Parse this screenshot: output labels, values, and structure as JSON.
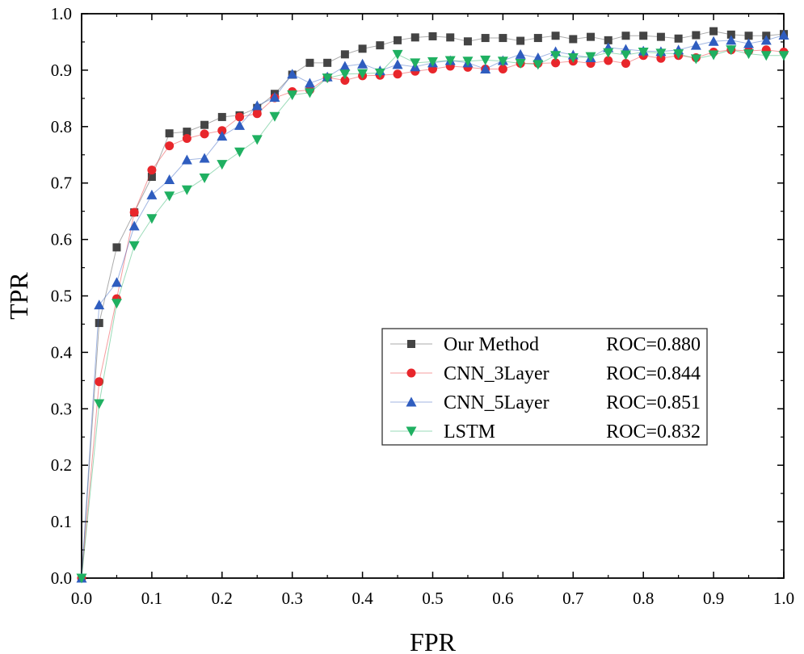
{
  "chart_data": {
    "type": "line",
    "title": "",
    "xlabel": "FPR",
    "ylabel": "TPR",
    "xlim": [
      0.0,
      1.0
    ],
    "ylim": [
      0.0,
      1.0
    ],
    "grid": false,
    "legend_position": "center-right",
    "x_ticks": [
      "0.0",
      "0.1",
      "0.2",
      "0.3",
      "0.4",
      "0.5",
      "0.6",
      "0.7",
      "0.8",
      "0.9",
      "1.0"
    ],
    "y_ticks": [
      "0.0",
      "0.1",
      "0.2",
      "0.3",
      "0.4",
      "0.5",
      "0.6",
      "0.7",
      "0.8",
      "0.9",
      "1.0"
    ],
    "x": [
      0.0,
      0.025,
      0.05,
      0.075,
      0.1,
      0.125,
      0.15,
      0.175,
      0.2,
      0.225,
      0.25,
      0.275,
      0.3,
      0.325,
      0.35,
      0.375,
      0.4,
      0.425,
      0.45,
      0.475,
      0.5,
      0.525,
      0.55,
      0.575,
      0.6,
      0.625,
      0.65,
      0.675,
      0.7,
      0.725,
      0.75,
      0.775,
      0.8,
      0.825,
      0.85,
      0.875,
      0.9,
      0.925,
      0.95,
      0.975,
      1.0
    ],
    "series": [
      {
        "name": "Our Method",
        "roc": "ROC=0.880",
        "color": "#444444",
        "marker": "square",
        "values": [
          0.0,
          0.452,
          0.586,
          0.648,
          0.711,
          0.788,
          0.791,
          0.803,
          0.817,
          0.82,
          0.833,
          0.858,
          0.892,
          0.913,
          0.913,
          0.928,
          0.938,
          0.944,
          0.953,
          0.958,
          0.96,
          0.958,
          0.951,
          0.957,
          0.957,
          0.952,
          0.957,
          0.961,
          0.955,
          0.959,
          0.953,
          0.961,
          0.961,
          0.959,
          0.956,
          0.962,
          0.969,
          0.963,
          0.961,
          0.961,
          0.964
        ]
      },
      {
        "name": "CNN_3Layer",
        "roc": "ROC=0.844",
        "color": "#e8262b",
        "marker": "circle",
        "values": [
          0.0,
          0.348,
          0.495,
          0.648,
          0.723,
          0.766,
          0.779,
          0.787,
          0.793,
          0.817,
          0.823,
          0.851,
          0.862,
          0.865,
          0.887,
          0.882,
          0.89,
          0.891,
          0.893,
          0.898,
          0.902,
          0.907,
          0.905,
          0.902,
          0.902,
          0.912,
          0.912,
          0.913,
          0.916,
          0.912,
          0.917,
          0.912,
          0.926,
          0.921,
          0.926,
          0.922,
          0.932,
          0.936,
          0.934,
          0.936,
          0.932
        ]
      },
      {
        "name": "CNN_5Layer",
        "roc": "ROC=0.851",
        "color": "#2f5dbf",
        "marker": "triangle-up",
        "values": [
          0.0,
          0.484,
          0.524,
          0.624,
          0.679,
          0.706,
          0.741,
          0.744,
          0.783,
          0.802,
          0.837,
          0.852,
          0.893,
          0.877,
          0.888,
          0.907,
          0.911,
          0.899,
          0.91,
          0.906,
          0.913,
          0.917,
          0.913,
          0.902,
          0.917,
          0.928,
          0.922,
          0.933,
          0.927,
          0.922,
          0.94,
          0.937,
          0.934,
          0.933,
          0.936,
          0.944,
          0.951,
          0.953,
          0.947,
          0.953,
          0.962
        ]
      },
      {
        "name": "LSTM",
        "roc": "ROC=0.832",
        "color": "#1fb061",
        "marker": "triangle-down",
        "values": [
          0.0,
          0.309,
          0.487,
          0.589,
          0.637,
          0.677,
          0.688,
          0.709,
          0.733,
          0.755,
          0.777,
          0.818,
          0.856,
          0.86,
          0.886,
          0.893,
          0.894,
          0.895,
          0.928,
          0.913,
          0.915,
          0.917,
          0.916,
          0.918,
          0.916,
          0.912,
          0.91,
          0.926,
          0.922,
          0.924,
          0.931,
          0.927,
          0.932,
          0.93,
          0.929,
          0.92,
          0.927,
          0.936,
          0.929,
          0.926,
          0.926
        ]
      }
    ]
  }
}
